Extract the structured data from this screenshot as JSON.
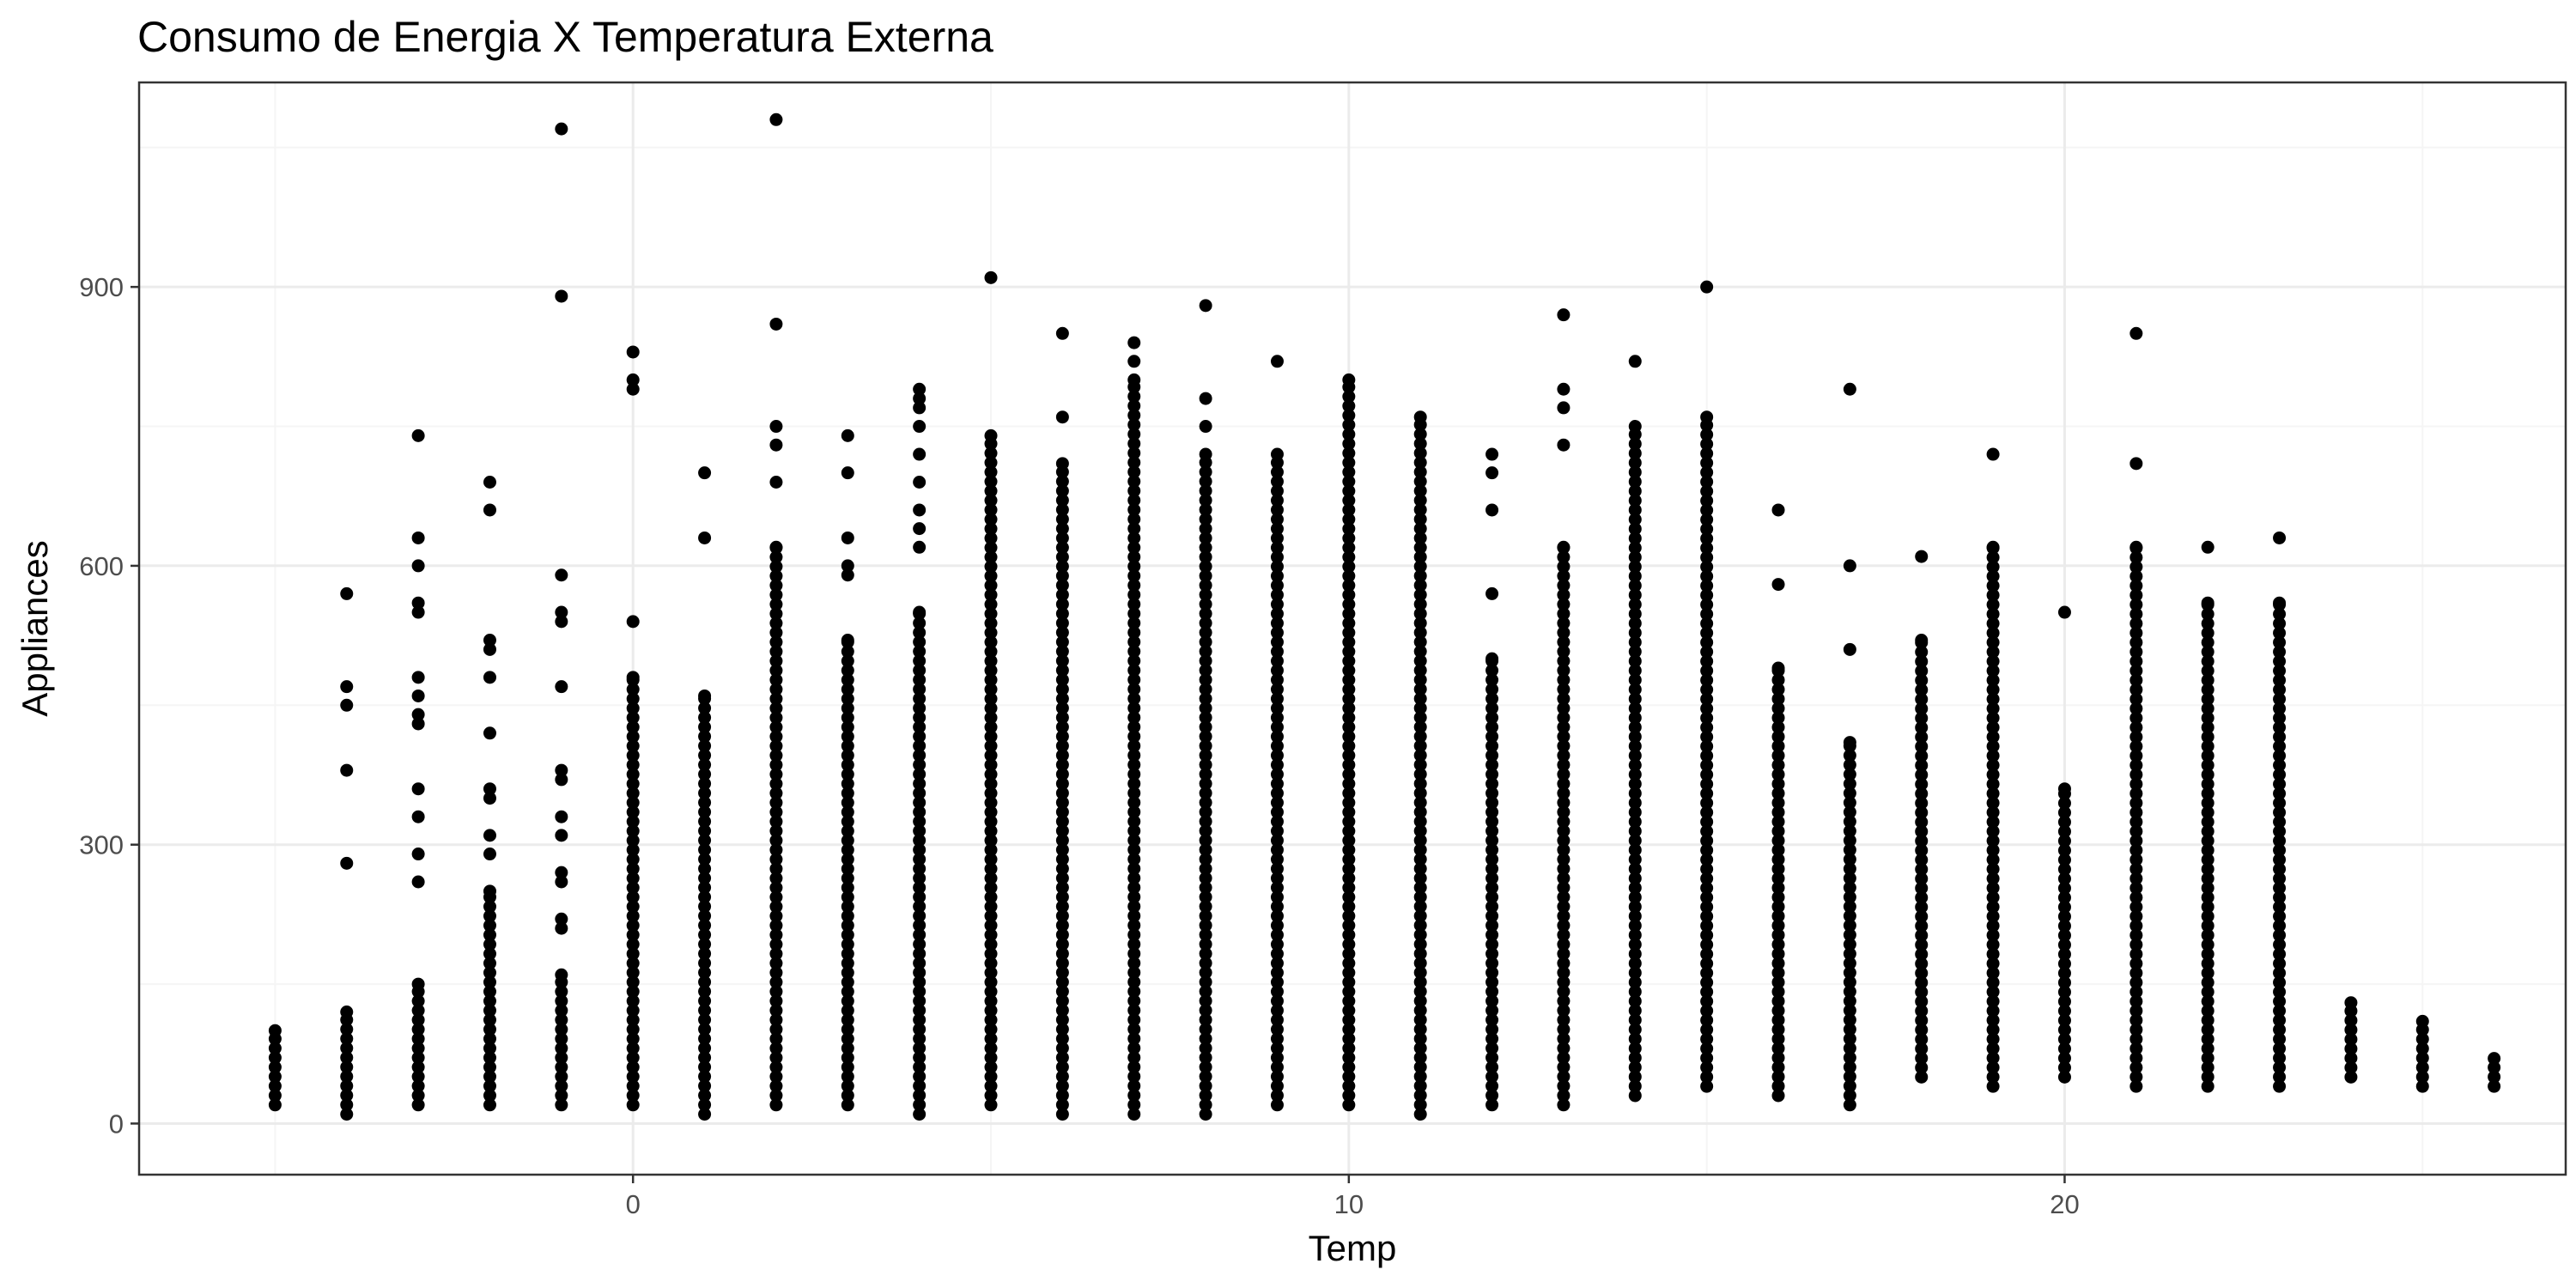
{
  "chart_data": {
    "type": "scatter",
    "title": "Consumo de Energia X Temperatura Externa",
    "xlabel": "Temp",
    "ylabel": "Appliances",
    "xlim": [
      -6.9,
      27.0
    ],
    "ylim": [
      -55,
      1120
    ],
    "x_ticks": [
      0,
      10,
      20
    ],
    "y_ticks": [
      0,
      300,
      600,
      900
    ],
    "x_tick_labels": [
      "0",
      "10",
      "20"
    ],
    "y_tick_labels": [
      "0",
      "300",
      "600",
      "900"
    ],
    "grid": true,
    "legend": "none",
    "colors": {
      "points": "#000000",
      "grid_major": "#ebebeb",
      "grid_minor": "#f5f5f5",
      "panel_border": "#333333",
      "tick_label": "#4d4d4d"
    },
    "columns": [
      {
        "x": -5,
        "range": [
          20,
          100
        ],
        "extra": []
      },
      {
        "x": -4,
        "range": [
          10,
          120
        ],
        "extra": [
          280,
          380,
          450,
          470,
          570
        ]
      },
      {
        "x": -3,
        "range": [
          20,
          150
        ],
        "extra": [
          260,
          290,
          330,
          360,
          430,
          440,
          460,
          480,
          550,
          560,
          600,
          630,
          740
        ]
      },
      {
        "x": -2,
        "range": [
          20,
          250
        ],
        "extra": [
          290,
          310,
          350,
          360,
          420,
          480,
          510,
          520,
          660,
          690
        ]
      },
      {
        "x": -1,
        "range": [
          20,
          160
        ],
        "extra": [
          210,
          220,
          260,
          270,
          310,
          330,
          370,
          380,
          470,
          540,
          550,
          590,
          890,
          1070
        ]
      },
      {
        "x": 0,
        "range": [
          20,
          480
        ],
        "extra": [
          540,
          790,
          800,
          830
        ]
      },
      {
        "x": 1,
        "range": [
          10,
          460
        ],
        "extra": [
          630,
          700
        ]
      },
      {
        "x": 2,
        "range": [
          20,
          620
        ],
        "extra": [
          690,
          730,
          750,
          860,
          1080
        ]
      },
      {
        "x": 3,
        "range": [
          20,
          520
        ],
        "extra": [
          590,
          600,
          630,
          700,
          740
        ]
      },
      {
        "x": 4,
        "range": [
          10,
          550
        ],
        "extra": [
          620,
          640,
          660,
          690,
          720,
          750,
          770,
          780,
          790
        ]
      },
      {
        "x": 5,
        "range": [
          20,
          740
        ],
        "extra": [
          910
        ]
      },
      {
        "x": 6,
        "range": [
          10,
          710
        ],
        "extra": [
          760,
          850
        ]
      },
      {
        "x": 7,
        "range": [
          10,
          800
        ],
        "extra": [
          820,
          840
        ]
      },
      {
        "x": 8,
        "range": [
          10,
          720
        ],
        "extra": [
          750,
          780,
          880
        ]
      },
      {
        "x": 9,
        "range": [
          20,
          720
        ],
        "extra": [
          820
        ]
      },
      {
        "x": 10,
        "range": [
          20,
          800
        ],
        "extra": []
      },
      {
        "x": 11,
        "range": [
          10,
          760
        ],
        "extra": []
      },
      {
        "x": 12,
        "range": [
          20,
          500
        ],
        "extra": [
          570,
          660,
          700,
          720
        ]
      },
      {
        "x": 13,
        "range": [
          20,
          620
        ],
        "extra": [
          730,
          770,
          790,
          870
        ]
      },
      {
        "x": 14,
        "range": [
          30,
          750
        ],
        "extra": [
          820
        ]
      },
      {
        "x": 15,
        "range": [
          40,
          760
        ],
        "extra": [
          900
        ]
      },
      {
        "x": 16,
        "range": [
          30,
          490
        ],
        "extra": [
          580,
          660
        ]
      },
      {
        "x": 17,
        "range": [
          20,
          410
        ],
        "extra": [
          510,
          600,
          790
        ]
      },
      {
        "x": 18,
        "range": [
          50,
          520
        ],
        "extra": [
          610
        ]
      },
      {
        "x": 19,
        "range": [
          40,
          620
        ],
        "extra": [
          720
        ]
      },
      {
        "x": 20,
        "range": [
          50,
          360
        ],
        "extra": [
          550
        ]
      },
      {
        "x": 21,
        "range": [
          40,
          620
        ],
        "extra": [
          710,
          850
        ]
      },
      {
        "x": 22,
        "range": [
          40,
          560
        ],
        "extra": [
          620
        ]
      },
      {
        "x": 23,
        "range": [
          40,
          560
        ],
        "extra": [
          630
        ]
      },
      {
        "x": 24,
        "range": [
          50,
          130
        ],
        "extra": []
      },
      {
        "x": 25,
        "range": [
          40,
          110
        ],
        "extra": []
      },
      {
        "x": 26,
        "range": [
          40,
          70
        ],
        "extra": []
      }
    ]
  }
}
